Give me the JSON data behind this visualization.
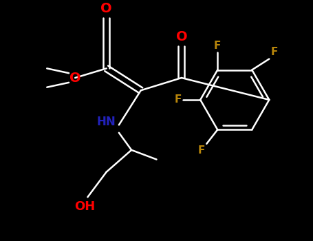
{
  "bg_color": "#000000",
  "bond_color": "#ffffff",
  "O_color": "#ff0000",
  "N_color": "#2222bb",
  "F_color": "#b8860b",
  "lw": 1.8,
  "figsize": [
    4.55,
    3.5
  ],
  "dpi": 100,
  "xlim": [
    0,
    10
  ],
  "ylim": [
    0,
    7.5
  ]
}
